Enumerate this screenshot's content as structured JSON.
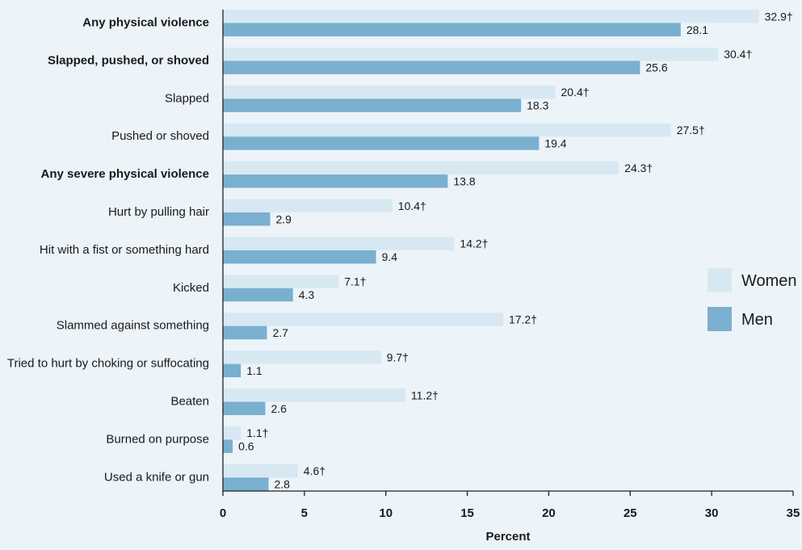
{
  "chart_data": {
    "type": "bar",
    "orientation": "horizontal",
    "categories": [
      "Any physical violence",
      "Slapped, pushed, or shoved",
      "Slapped",
      "Pushed or shoved",
      "Any severe physical violence",
      "Hurt by pulling hair",
      "Hit with a fist or something hard",
      "Kicked",
      "Slammed against something",
      "Tried to hurt by choking or suffocating",
      "Beaten",
      "Burned on purpose",
      "Used a knife or gun"
    ],
    "bold_categories": [
      "Any physical violence",
      "Slapped, pushed, or shoved",
      "Any severe physical violence"
    ],
    "series": [
      {
        "name": "Women",
        "color": "#d8e8f3",
        "values": [
          32.9,
          30.4,
          20.4,
          27.5,
          24.3,
          10.4,
          14.2,
          7.1,
          17.2,
          9.7,
          11.2,
          1.1,
          4.6
        ],
        "labels": [
          "32.9†",
          "30.4†",
          "20.4†",
          "27.5†",
          "24.3†",
          "10.4†",
          "14.2†",
          "7.1†",
          "17.2†",
          "9.7†",
          "11.2†",
          "1.1†",
          "4.6†"
        ]
      },
      {
        "name": "Men",
        "color": "#7aafcf",
        "values": [
          28.1,
          25.6,
          18.3,
          19.4,
          13.8,
          2.9,
          9.4,
          4.3,
          2.7,
          1.1,
          2.6,
          0.6,
          2.8
        ],
        "labels": [
          "28.1",
          "25.6",
          "18.3",
          "19.4",
          "13.8",
          "2.9",
          "9.4",
          "4.3",
          "2.7",
          "1.1",
          "2.6",
          "0.6",
          "2.8"
        ]
      }
    ],
    "xlabel": "Percent",
    "xlim": [
      0,
      35
    ],
    "xticks": [
      "0",
      "5",
      "10",
      "15",
      "20",
      "25",
      "30",
      "35"
    ],
    "grid": false,
    "legend_position": "right"
  }
}
